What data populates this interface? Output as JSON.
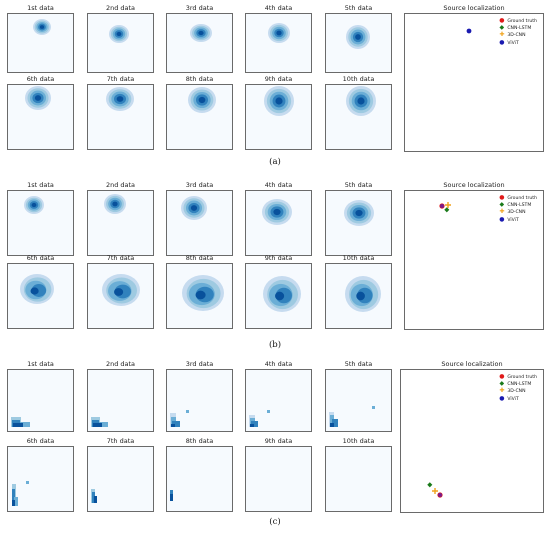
{
  "panels": [
    {
      "caption": "(a)",
      "cells": [
        {
          "label": "1st data"
        },
        {
          "label": "2nd data"
        },
        {
          "label": "3rd data"
        },
        {
          "label": "4th data"
        },
        {
          "label": "5th data"
        },
        {
          "label": "6th data"
        },
        {
          "label": "7th data"
        },
        {
          "label": "8th data"
        },
        {
          "label": "9th data"
        },
        {
          "label": "10th data"
        }
      ],
      "source": {
        "title": "Source localization",
        "legend": [
          {
            "name": "Ground truth",
            "color": "#e01a1a",
            "marker": "●"
          },
          {
            "name": "CNN-LSTM",
            "color": "#1a7a1a",
            "marker": "◆"
          },
          {
            "name": "3D-CNN",
            "color": "#f0a21a",
            "marker": "✚"
          },
          {
            "name": "ViViT",
            "color": "#1a1ab0",
            "marker": "●"
          }
        ]
      }
    },
    {
      "caption": "(b)",
      "cells": [
        {
          "label": "1st data"
        },
        {
          "label": "2nd data"
        },
        {
          "label": "3rd data"
        },
        {
          "label": "4th data"
        },
        {
          "label": "5th data"
        },
        {
          "label": "6th data"
        },
        {
          "label": "7th data"
        },
        {
          "label": "8th data"
        },
        {
          "label": "9th data"
        },
        {
          "label": "10th data"
        }
      ],
      "source": {
        "title": "Source localization",
        "legend": [
          {
            "name": "Ground truth",
            "color": "#e01a1a",
            "marker": "●"
          },
          {
            "name": "CNN-LSTM",
            "color": "#1a7a1a",
            "marker": "◆"
          },
          {
            "name": "3D-CNN",
            "color": "#f0a21a",
            "marker": "✚"
          },
          {
            "name": "ViViT",
            "color": "#1a1ab0",
            "marker": "●"
          }
        ]
      }
    },
    {
      "caption": "(c)",
      "cells": [
        {
          "label": "1st data"
        },
        {
          "label": "2nd data"
        },
        {
          "label": "3rd data"
        },
        {
          "label": "4th data"
        },
        {
          "label": "5th data"
        },
        {
          "label": "6th data"
        },
        {
          "label": "7th data"
        },
        {
          "label": "8th data"
        },
        {
          "label": "9th data"
        },
        {
          "label": "10th data"
        }
      ],
      "source": {
        "title": "Source localization",
        "legend": [
          {
            "name": "Ground truth",
            "color": "#e01a1a",
            "marker": "●"
          },
          {
            "name": "CNN-LSTM",
            "color": "#1a7a1a",
            "marker": "◆"
          },
          {
            "name": "3D-CNN",
            "color": "#f0a21a",
            "marker": "✚"
          },
          {
            "name": "ViViT",
            "color": "#1a1ab0",
            "marker": "●"
          }
        ]
      }
    }
  ]
}
